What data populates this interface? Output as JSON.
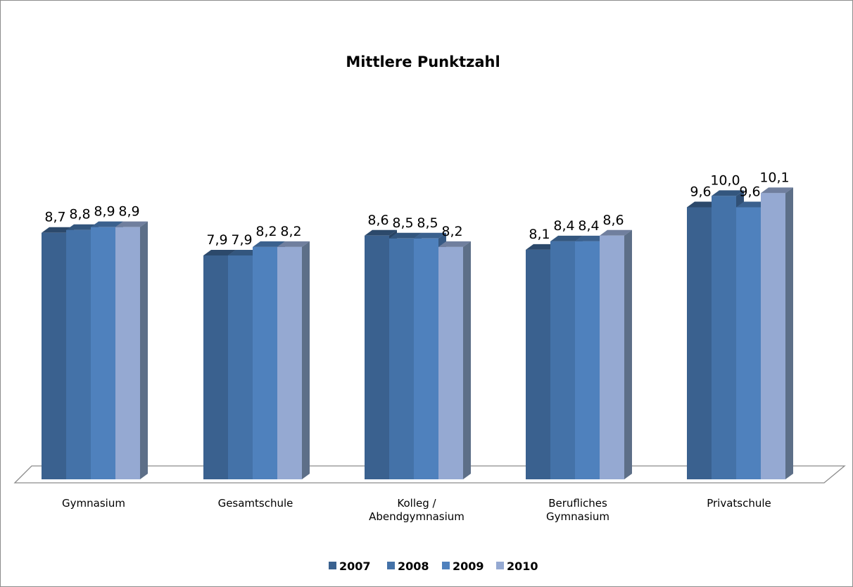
{
  "chart_data": {
    "type": "bar",
    "title": "Mittlere Punktzahl",
    "xlabel": "",
    "ylabel": "",
    "ylim": [
      0,
      10.5
    ],
    "grid": false,
    "legend_position": "bottom",
    "categories": [
      [
        "Gymnasium"
      ],
      [
        "Gesamtschule"
      ],
      [
        "Kolleg /",
        "Abendgymnasium"
      ],
      [
        "Berufliches",
        "Gymnasium"
      ],
      [
        "Privatschule"
      ]
    ],
    "series": [
      {
        "name": "2007",
        "color": "#3a618f",
        "values": [
          8.7,
          7.9,
          8.6,
          8.1,
          9.6
        ],
        "labels": [
          "8,7",
          "7,9",
          "8,6",
          "8,1",
          "9,6"
        ]
      },
      {
        "name": "2008",
        "color": "#4472a8",
        "values": [
          8.8,
          7.9,
          8.5,
          8.4,
          10.0
        ],
        "labels": [
          "8,8",
          "7,9",
          "8,5",
          "8,4",
          "10,0"
        ]
      },
      {
        "name": "2009",
        "color": "#4f81bd",
        "values": [
          8.9,
          8.2,
          8.5,
          8.4,
          9.6
        ],
        "labels": [
          "8,9",
          "8,2",
          "8,5",
          "8,4",
          "9,6"
        ]
      },
      {
        "name": "2010",
        "color": "#95a9d2",
        "values": [
          8.9,
          8.2,
          8.2,
          8.6,
          10.1
        ],
        "labels": [
          "8,9",
          "8,2",
          "8,2",
          "8,6",
          "10,1"
        ]
      }
    ]
  }
}
